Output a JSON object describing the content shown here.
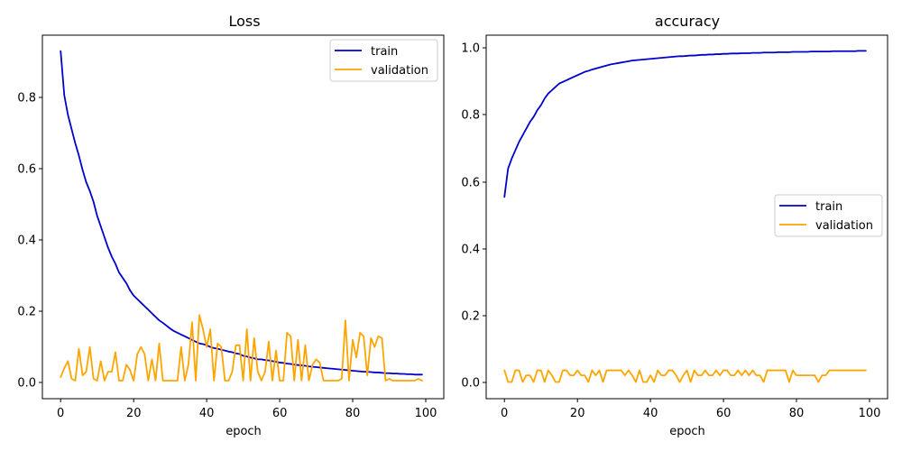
{
  "chart_data": [
    {
      "type": "line",
      "title": "Loss",
      "xlabel": "epoch",
      "ylabel": "",
      "xlim": [
        -5,
        104.95
      ],
      "ylim": [
        -0.046,
        0.98
      ],
      "xticks": [
        "0",
        "20",
        "40",
        "60",
        "80",
        "100"
      ],
      "yticks": [
        "0.0",
        "0.2",
        "0.4",
        "0.6",
        "0.8"
      ],
      "grid": false,
      "legend": "top-right",
      "series": [
        {
          "name": "train",
          "color": "#0000cc",
          "x_start": 0,
          "values": [
            0.935,
            0.81,
            0.755,
            0.715,
            0.675,
            0.64,
            0.6,
            0.565,
            0.54,
            0.51,
            0.47,
            0.44,
            0.41,
            0.38,
            0.355,
            0.335,
            0.31,
            0.295,
            0.28,
            0.26,
            0.245,
            0.235,
            0.225,
            0.215,
            0.205,
            0.195,
            0.185,
            0.175,
            0.168,
            0.16,
            0.152,
            0.145,
            0.14,
            0.135,
            0.13,
            0.125,
            0.12,
            0.115,
            0.11,
            0.108,
            0.105,
            0.1,
            0.097,
            0.095,
            0.092,
            0.09,
            0.087,
            0.085,
            0.082,
            0.08,
            0.075,
            0.073,
            0.07,
            0.068,
            0.065,
            0.065,
            0.063,
            0.062,
            0.06,
            0.058,
            0.056,
            0.055,
            0.053,
            0.052,
            0.05,
            0.049,
            0.048,
            0.047,
            0.045,
            0.044,
            0.043,
            0.042,
            0.041,
            0.04,
            0.039,
            0.038,
            0.037,
            0.036,
            0.035,
            0.034,
            0.033,
            0.032,
            0.031,
            0.03,
            0.03,
            0.029,
            0.028,
            0.028,
            0.027,
            0.026,
            0.026,
            0.025,
            0.025,
            0.024,
            0.024,
            0.023,
            0.023,
            0.022,
            0.022,
            0.022
          ]
        },
        {
          "name": "validation",
          "color": "#ffa500",
          "x_start": 0,
          "values": [
            0.015,
            0.04,
            0.06,
            0.01,
            0.005,
            0.095,
            0.02,
            0.03,
            0.1,
            0.01,
            0.005,
            0.06,
            0.005,
            0.03,
            0.03,
            0.085,
            0.005,
            0.005,
            0.05,
            0.035,
            0.005,
            0.08,
            0.1,
            0.08,
            0.005,
            0.065,
            0.005,
            0.11,
            0.005,
            0.005,
            0.005,
            0.005,
            0.005,
            0.1,
            0.005,
            0.05,
            0.17,
            0.005,
            0.19,
            0.15,
            0.1,
            0.15,
            0.005,
            0.11,
            0.1,
            0.005,
            0.005,
            0.03,
            0.105,
            0.105,
            0.005,
            0.15,
            0.005,
            0.125,
            0.03,
            0.005,
            0.03,
            0.115,
            0.005,
            0.09,
            0.005,
            0.005,
            0.14,
            0.13,
            0.005,
            0.12,
            0.005,
            0.105,
            0.005,
            0.05,
            0.065,
            0.055,
            0.005,
            0.005,
            0.005,
            0.005,
            0.005,
            0.01,
            0.175,
            0.005,
            0.12,
            0.07,
            0.14,
            0.13,
            0.02,
            0.125,
            0.1,
            0.13,
            0.125,
            0.005,
            0.01,
            0.005,
            0.005,
            0.005,
            0.005,
            0.005,
            0.005,
            0.005,
            0.01,
            0.005
          ]
        }
      ]
    },
    {
      "type": "line",
      "title": "accuracy",
      "xlabel": "epoch",
      "ylabel": "",
      "xlim": [
        -5,
        104.95
      ],
      "ylim": [
        -0.05,
        1.04
      ],
      "xticks": [
        "0",
        "20",
        "40",
        "60",
        "80",
        "100"
      ],
      "yticks": [
        "0.0",
        "0.2",
        "0.4",
        "0.6",
        "0.8",
        "1.0"
      ],
      "grid": false,
      "legend": "center-right",
      "series": [
        {
          "name": "train",
          "color": "#0000cc",
          "x_start": 0,
          "values": [
            0.555,
            0.64,
            0.67,
            0.695,
            0.72,
            0.74,
            0.76,
            0.78,
            0.795,
            0.815,
            0.83,
            0.85,
            0.865,
            0.875,
            0.885,
            0.895,
            0.9,
            0.905,
            0.91,
            0.915,
            0.92,
            0.925,
            0.93,
            0.933,
            0.937,
            0.94,
            0.943,
            0.946,
            0.949,
            0.952,
            0.954,
            0.956,
            0.958,
            0.96,
            0.962,
            0.964,
            0.965,
            0.966,
            0.967,
            0.968,
            0.969,
            0.97,
            0.971,
            0.972,
            0.973,
            0.974,
            0.975,
            0.976,
            0.977,
            0.977,
            0.978,
            0.979,
            0.979,
            0.98,
            0.981,
            0.981,
            0.982,
            0.982,
            0.983,
            0.983,
            0.984,
            0.984,
            0.985,
            0.985,
            0.985,
            0.986,
            0.986,
            0.986,
            0.987,
            0.987,
            0.987,
            0.988,
            0.988,
            0.988,
            0.988,
            0.989,
            0.989,
            0.989,
            0.989,
            0.99,
            0.99,
            0.99,
            0.99,
            0.99,
            0.991,
            0.991,
            0.991,
            0.991,
            0.991,
            0.991,
            0.992,
            0.992,
            0.992,
            0.992,
            0.992,
            0.992,
            0.992,
            0.993,
            0.993,
            0.993
          ]
        },
        {
          "name": "validation",
          "color": "#ffa500",
          "x_start": 0,
          "values": [
            0.035,
            0.0,
            0.0,
            0.035,
            0.035,
            0.0,
            0.02,
            0.02,
            0.0,
            0.035,
            0.035,
            0.0,
            0.035,
            0.02,
            0.0,
            0.0,
            0.035,
            0.035,
            0.02,
            0.02,
            0.035,
            0.02,
            0.02,
            0.0,
            0.035,
            0.02,
            0.035,
            0.0,
            0.035,
            0.035,
            0.035,
            0.035,
            0.035,
            0.02,
            0.035,
            0.02,
            0.0,
            0.035,
            0.0,
            0.0,
            0.02,
            0.0,
            0.035,
            0.02,
            0.02,
            0.035,
            0.035,
            0.02,
            0.0,
            0.02,
            0.035,
            0.0,
            0.035,
            0.02,
            0.02,
            0.035,
            0.02,
            0.02,
            0.035,
            0.02,
            0.035,
            0.035,
            0.02,
            0.02,
            0.035,
            0.02,
            0.035,
            0.02,
            0.035,
            0.02,
            0.02,
            0.0,
            0.035,
            0.035,
            0.035,
            0.035,
            0.035,
            0.035,
            0.0,
            0.035,
            0.02,
            0.02,
            0.02,
            0.02,
            0.02,
            0.02,
            0.0,
            0.02,
            0.02,
            0.035,
            0.035,
            0.035,
            0.035,
            0.035,
            0.035,
            0.035,
            0.035,
            0.035,
            0.035,
            0.035
          ]
        }
      ]
    }
  ]
}
